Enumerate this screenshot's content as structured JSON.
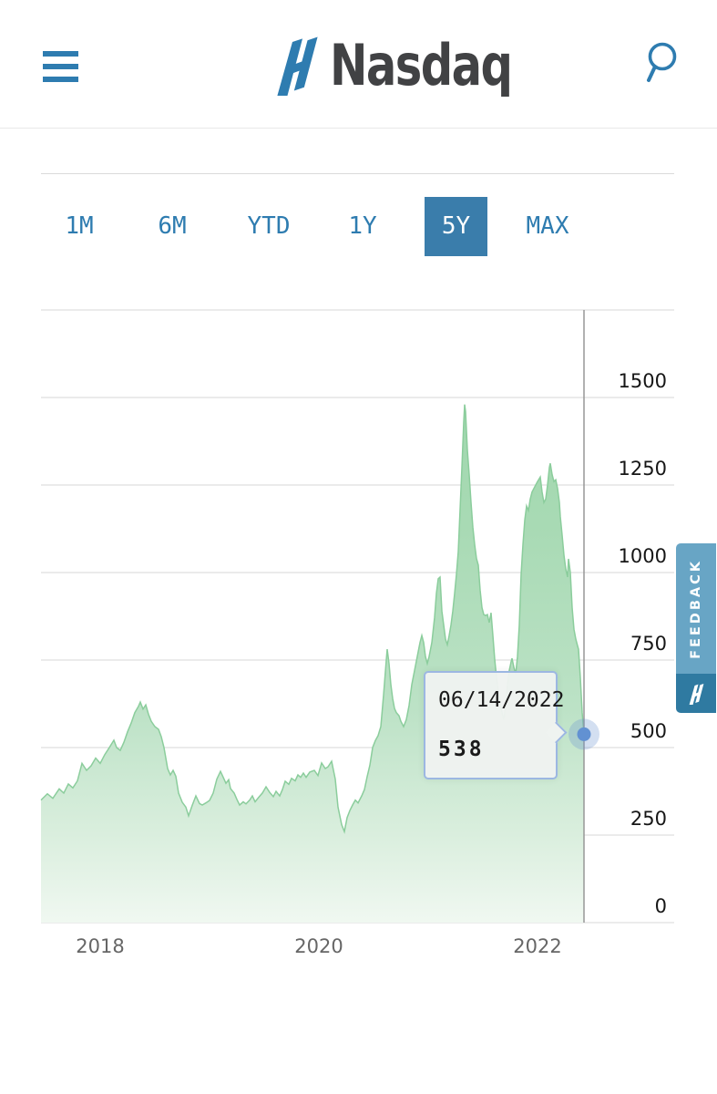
{
  "header": {
    "title": "Nasdaq",
    "icons": {
      "menu": "hamburger-icon",
      "search": "search-icon",
      "logo": "nasdaq-ribbon-icon"
    }
  },
  "tabs": {
    "items": [
      {
        "label": "1M",
        "active": false
      },
      {
        "label": "6M",
        "active": false
      },
      {
        "label": "YTD",
        "active": false
      },
      {
        "label": "1Y",
        "active": false
      },
      {
        "label": "5Y",
        "active": true
      },
      {
        "label": "MAX",
        "active": false
      }
    ]
  },
  "tooltip": {
    "date": "06/14/2022",
    "value": "538"
  },
  "feedback": {
    "label": "FEEDBACK"
  },
  "colors": {
    "accent_blue": "#2e7cb0",
    "active_tab_bg": "#3a7dab",
    "area_green_top": "#9bd5aa",
    "area_green_bottom": "#f0f8f1",
    "area_stroke": "#8bcd9c",
    "gridline": "#d7d7d7",
    "crosshair": "#979797",
    "marker_blue": "#6291d2",
    "tooltip_border": "#9cb7e2",
    "feedback_bg": "#68a5c5",
    "feedback_logo_bg": "#2f7aa1"
  },
  "chart_data": {
    "type": "area",
    "title": "",
    "xlabel": "",
    "ylabel": "",
    "ylim": [
      0,
      1750
    ],
    "grid": true,
    "legend": "none",
    "y_axis": {
      "gridlines": [
        1750,
        1500,
        1250,
        1000,
        750,
        500,
        250,
        0
      ],
      "ticks": [
        {
          "value": 1500,
          "label": "1500"
        },
        {
          "value": 1250,
          "label": "1250"
        },
        {
          "value": 1000,
          "label": "1000"
        },
        {
          "value": 750,
          "label": "750"
        },
        {
          "value": 500,
          "label": "500"
        },
        {
          "value": 250,
          "label": "250"
        },
        {
          "value": 0,
          "label": "0"
        }
      ]
    },
    "x_axis": {
      "ticks": [
        {
          "value": 2018,
          "label": "2018"
        },
        {
          "value": 2020,
          "label": "2020"
        },
        {
          "value": 2022,
          "label": "2022"
        }
      ],
      "range_years": [
        2017.458,
        2022.425
      ]
    },
    "cursor": {
      "year": 2022.425,
      "price": 538,
      "date": "06/14/2022"
    },
    "series": [
      {
        "name": "price",
        "points": [
          [
            2017.458,
            350
          ],
          [
            2017.517,
            368
          ],
          [
            2017.567,
            355
          ],
          [
            2017.625,
            382
          ],
          [
            2017.667,
            370
          ],
          [
            2017.708,
            396
          ],
          [
            2017.75,
            385
          ],
          [
            2017.792,
            405
          ],
          [
            2017.833,
            455
          ],
          [
            2017.875,
            435
          ],
          [
            2017.917,
            448
          ],
          [
            2017.958,
            470
          ],
          [
            2018,
            455
          ],
          [
            2018.042,
            480
          ],
          [
            2018.083,
            500
          ],
          [
            2018.125,
            521
          ],
          [
            2018.15,
            500
          ],
          [
            2018.183,
            492
          ],
          [
            2018.217,
            515
          ],
          [
            2018.25,
            545
          ],
          [
            2018.283,
            570
          ],
          [
            2018.317,
            600
          ],
          [
            2018.35,
            618
          ],
          [
            2018.367,
            630
          ],
          [
            2018.392,
            610
          ],
          [
            2018.417,
            622
          ],
          [
            2018.442,
            595
          ],
          [
            2018.467,
            575
          ],
          [
            2018.5,
            560
          ],
          [
            2018.533,
            552
          ],
          [
            2018.558,
            531
          ],
          [
            2018.583,
            500
          ],
          [
            2018.617,
            440
          ],
          [
            2018.642,
            422
          ],
          [
            2018.667,
            435
          ],
          [
            2018.692,
            418
          ],
          [
            2018.717,
            370
          ],
          [
            2018.75,
            344
          ],
          [
            2018.783,
            330
          ],
          [
            2018.808,
            305
          ],
          [
            2018.842,
            335
          ],
          [
            2018.875,
            362
          ],
          [
            2018.908,
            340
          ],
          [
            2018.933,
            336
          ],
          [
            2018.967,
            342
          ],
          [
            2019,
            349
          ],
          [
            2019.033,
            370
          ],
          [
            2019.067,
            410
          ],
          [
            2019.1,
            432
          ],
          [
            2019.125,
            415
          ],
          [
            2019.15,
            398
          ],
          [
            2019.175,
            408
          ],
          [
            2019.192,
            383
          ],
          [
            2019.225,
            370
          ],
          [
            2019.25,
            352
          ],
          [
            2019.275,
            336
          ],
          [
            2019.308,
            345
          ],
          [
            2019.333,
            339
          ],
          [
            2019.367,
            350
          ],
          [
            2019.392,
            362
          ],
          [
            2019.417,
            345
          ],
          [
            2019.45,
            358
          ],
          [
            2019.483,
            370
          ],
          [
            2019.517,
            388
          ],
          [
            2019.55,
            372
          ],
          [
            2019.583,
            360
          ],
          [
            2019.608,
            375
          ],
          [
            2019.642,
            362
          ],
          [
            2019.667,
            380
          ],
          [
            2019.692,
            404
          ],
          [
            2019.725,
            395
          ],
          [
            2019.75,
            412
          ],
          [
            2019.783,
            405
          ],
          [
            2019.808,
            422
          ],
          [
            2019.833,
            415
          ],
          [
            2019.858,
            427
          ],
          [
            2019.883,
            415
          ],
          [
            2019.917,
            430
          ],
          [
            2019.958,
            435
          ],
          [
            2019.992,
            420
          ],
          [
            2020.025,
            456
          ],
          [
            2020.058,
            440
          ],
          [
            2020.083,
            445
          ],
          [
            2020.117,
            461
          ],
          [
            2020.15,
            410
          ],
          [
            2020.175,
            330
          ],
          [
            2020.208,
            280
          ],
          [
            2020.233,
            260
          ],
          [
            2020.258,
            300
          ],
          [
            2020.283,
            320
          ],
          [
            2020.308,
            336
          ],
          [
            2020.333,
            350
          ],
          [
            2020.358,
            342
          ],
          [
            2020.392,
            362
          ],
          [
            2020.417,
            380
          ],
          [
            2020.442,
            417
          ],
          [
            2020.467,
            450
          ],
          [
            2020.492,
            500
          ],
          [
            2020.517,
            520
          ],
          [
            2020.542,
            534
          ],
          [
            2020.567,
            560
          ],
          [
            2020.592,
            650
          ],
          [
            2020.617,
            750
          ],
          [
            2020.625,
            781
          ],
          [
            2020.642,
            740
          ],
          [
            2020.658,
            680
          ],
          [
            2020.675,
            640
          ],
          [
            2020.692,
            612
          ],
          [
            2020.708,
            600
          ],
          [
            2020.733,
            591
          ],
          [
            2020.75,
            575
          ],
          [
            2020.775,
            560
          ],
          [
            2020.8,
            580
          ],
          [
            2020.825,
            620
          ],
          [
            2020.85,
            680
          ],
          [
            2020.875,
            720
          ],
          [
            2020.9,
            760
          ],
          [
            2020.925,
            800
          ],
          [
            2020.942,
            820
          ],
          [
            2020.958,
            800
          ],
          [
            2020.975,
            760
          ],
          [
            2020.992,
            740
          ],
          [
            2021.008,
            760
          ],
          [
            2021.033,
            800
          ],
          [
            2021.058,
            872
          ],
          [
            2021.075,
            940
          ],
          [
            2021.092,
            982
          ],
          [
            2021.108,
            987
          ],
          [
            2021.125,
            890
          ],
          [
            2021.142,
            850
          ],
          [
            2021.158,
            810
          ],
          [
            2021.175,
            794
          ],
          [
            2021.192,
            820
          ],
          [
            2021.208,
            850
          ],
          [
            2021.225,
            890
          ],
          [
            2021.242,
            940
          ],
          [
            2021.258,
            995
          ],
          [
            2021.275,
            1060
          ],
          [
            2021.292,
            1180
          ],
          [
            2021.308,
            1300
          ],
          [
            2021.325,
            1430
          ],
          [
            2021.333,
            1480
          ],
          [
            2021.342,
            1460
          ],
          [
            2021.358,
            1350
          ],
          [
            2021.375,
            1280
          ],
          [
            2021.392,
            1200
          ],
          [
            2021.408,
            1130
          ],
          [
            2021.425,
            1080
          ],
          [
            2021.442,
            1040
          ],
          [
            2021.458,
            1021
          ],
          [
            2021.475,
            950
          ],
          [
            2021.492,
            900
          ],
          [
            2021.508,
            880
          ],
          [
            2021.525,
            877
          ],
          [
            2021.542,
            880
          ],
          [
            2021.558,
            857
          ],
          [
            2021.575,
            885
          ],
          [
            2021.592,
            820
          ],
          [
            2021.608,
            752
          ],
          [
            2021.625,
            700
          ],
          [
            2021.642,
            660
          ],
          [
            2021.658,
            630
          ],
          [
            2021.675,
            600
          ],
          [
            2021.692,
            580
          ],
          [
            2021.708,
            620
          ],
          [
            2021.725,
            680
          ],
          [
            2021.742,
            720
          ],
          [
            2021.758,
            745
          ],
          [
            2021.767,
            755
          ],
          [
            2021.783,
            730
          ],
          [
            2021.8,
            710
          ],
          [
            2021.817,
            760
          ],
          [
            2021.833,
            850
          ],
          [
            2021.85,
            995
          ],
          [
            2021.867,
            1080
          ],
          [
            2021.883,
            1150
          ],
          [
            2021.9,
            1190
          ],
          [
            2021.917,
            1177
          ],
          [
            2021.933,
            1210
          ],
          [
            2021.95,
            1230
          ],
          [
            2021.967,
            1240
          ],
          [
            2021.983,
            1250
          ],
          [
            2022,
            1260
          ],
          [
            2022.025,
            1273
          ],
          [
            2022.042,
            1230
          ],
          [
            2022.058,
            1200
          ],
          [
            2022.075,
            1210
          ],
          [
            2022.092,
            1250
          ],
          [
            2022.108,
            1300
          ],
          [
            2022.117,
            1312
          ],
          [
            2022.133,
            1280
          ],
          [
            2022.15,
            1260
          ],
          [
            2022.167,
            1265
          ],
          [
            2022.183,
            1240
          ],
          [
            2022.2,
            1200
          ],
          [
            2022.208,
            1160
          ],
          [
            2022.225,
            1107
          ],
          [
            2022.242,
            1050
          ],
          [
            2022.258,
            1010
          ],
          [
            2022.275,
            987
          ],
          [
            2022.283,
            1039
          ],
          [
            2022.3,
            1000
          ],
          [
            2022.317,
            900
          ],
          [
            2022.333,
            838
          ],
          [
            2022.35,
            810
          ],
          [
            2022.367,
            790
          ],
          [
            2022.375,
            781
          ],
          [
            2022.392,
            700
          ],
          [
            2022.408,
            600
          ],
          [
            2022.425,
            538
          ]
        ]
      }
    ]
  }
}
